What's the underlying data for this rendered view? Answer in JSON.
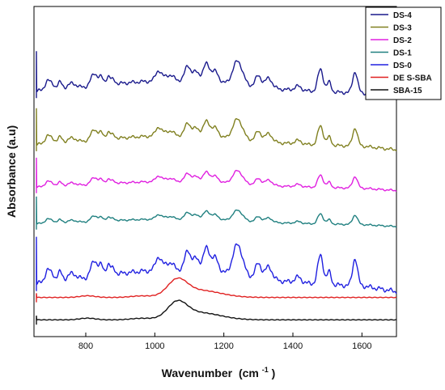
{
  "chart_data": {
    "type": "line",
    "xlabel": "Wavenumber",
    "xlabel_unit_prefix": "(cm",
    "xlabel_unit_exp": "-1",
    "xlabel_unit_suffix": ")",
    "ylabel": "Absorbance (a.u)",
    "xlim": [
      650,
      1700
    ],
    "x_ticks": [
      800,
      1000,
      1200,
      1400,
      1600
    ],
    "y_ticks_shown": false,
    "grid": false,
    "legend_position": "top-right",
    "note": "",
    "series": [
      {
        "name": "DS-4",
        "color": "#1a1a8c",
        "offset": 8.1,
        "amp": 1.0
      },
      {
        "name": "DS-3",
        "color": "#808020",
        "offset": 6.2,
        "amp": 0.85
      },
      {
        "name": "DS-2",
        "color": "#e020e0",
        "offset": 4.7,
        "amp": 0.55
      },
      {
        "name": "DS-1",
        "color": "#208080",
        "offset": 3.4,
        "amp": 0.45
      },
      {
        "name": "DS-0",
        "color": "#2020e0",
        "offset": 1.2,
        "amp": 1.3
      },
      {
        "name": "DE S-SBA",
        "color": "#e02020",
        "offset": 0.8,
        "amp": 0.0
      },
      {
        "name": "SBA-15",
        "color": "#111111",
        "offset": 0.0,
        "amp": 0.0
      }
    ]
  }
}
